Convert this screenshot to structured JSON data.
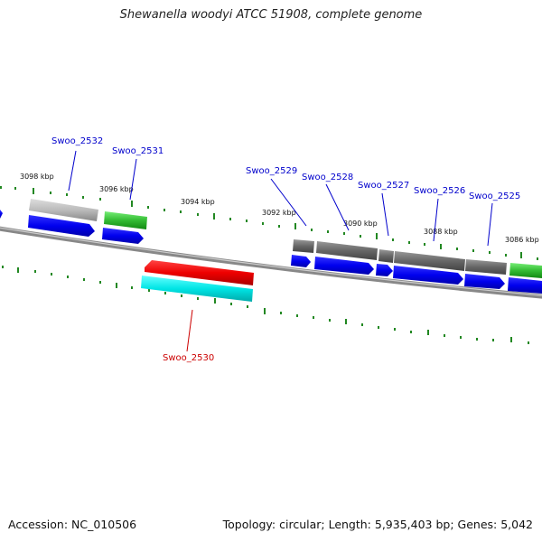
{
  "title": "Shewanella woodyi ATCC 51908, complete genome",
  "footer": {
    "accession": "Accession: NC_010506",
    "stats": "Topology: circular; Length: 5,935,403 bp; Genes: 5,042"
  },
  "ticks": [
    "3098 kbp",
    "3096 kbp",
    "3094 kbp",
    "3092 kbp",
    "3090 kbp",
    "3088 kbp",
    "3086 kbp"
  ],
  "genes": [
    {
      "id": "Swoo_2532",
      "color": "#0000cc"
    },
    {
      "id": "Swoo_2531",
      "color": "#0000cc"
    },
    {
      "id": "Swoo_2530",
      "color": "#cc0000"
    },
    {
      "id": "Swoo_2529",
      "color": "#0000cc"
    },
    {
      "id": "Swoo_2528",
      "color": "#0000cc"
    },
    {
      "id": "Swoo_2527",
      "color": "#0000cc"
    },
    {
      "id": "Swoo_2526",
      "color": "#0000cc"
    },
    {
      "id": "Swoo_2525",
      "color": "#0000cc"
    }
  ],
  "colors": {
    "cds": "#0000ee",
    "cds_reverse_gene": "#ee0000",
    "cds_reverse_cds": "#00e5e5",
    "gene_gray": "#aaaaaa",
    "gene_dark": "#666666",
    "gene_green": "#33bb33",
    "backbone": "#888888",
    "tick": "#118811"
  }
}
